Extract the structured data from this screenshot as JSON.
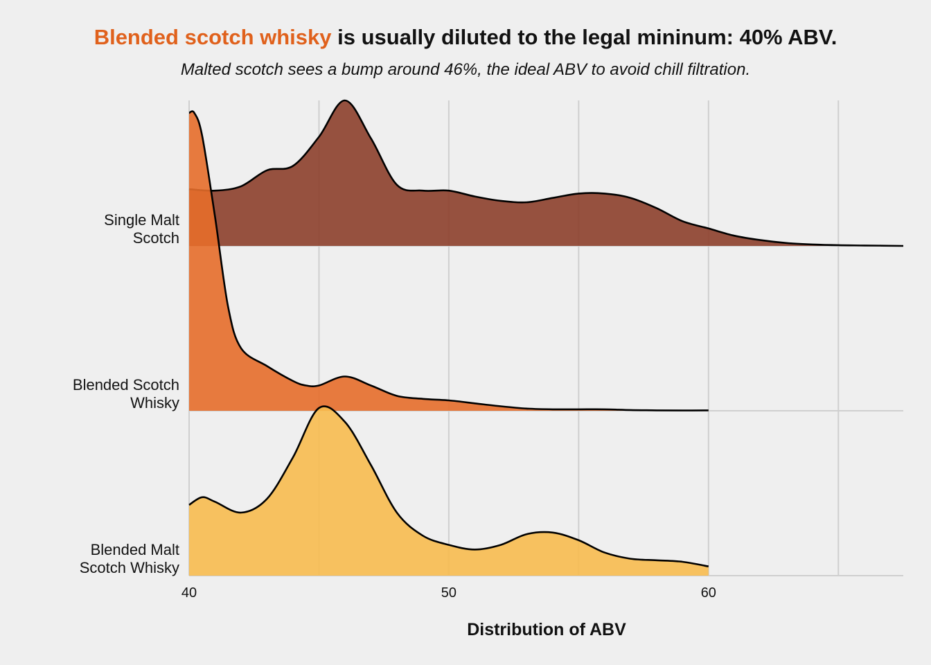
{
  "chart_data": {
    "type": "ridgeline",
    "title": {
      "highlight": "Blended scotch whisky",
      "rest": " is usually diluted to the legal mininum: 40% ABV.",
      "highlight_color": "#e0611c"
    },
    "subtitle": "Malted scotch sees a bump around 46%, the ideal ABV to avoid chill filtration.",
    "xlabel": "Distribution of ABV",
    "xlim": [
      40,
      67.5
    ],
    "x_ticks": [
      40,
      50,
      60
    ],
    "x_tick_labels": [
      "40",
      "50",
      "60"
    ],
    "grid": true,
    "series": [
      {
        "name": "Single Malt Scotch",
        "label_lines": [
          "Single Malt",
          "Scotch"
        ],
        "color": "#8c3f2b",
        "x": [
          40,
          41,
          42,
          43,
          44,
          45,
          46,
          47,
          48,
          49,
          50,
          51,
          52,
          53,
          54,
          55,
          56,
          57,
          58,
          59,
          60,
          61,
          62,
          63,
          64,
          65,
          66,
          67.5
        ],
        "density": [
          0.39,
          0.38,
          0.41,
          0.52,
          0.55,
          0.75,
          1.0,
          0.74,
          0.42,
          0.38,
          0.38,
          0.34,
          0.31,
          0.3,
          0.33,
          0.36,
          0.36,
          0.33,
          0.26,
          0.17,
          0.12,
          0.07,
          0.04,
          0.02,
          0.01,
          0.005,
          0.003,
          0.0
        ]
      },
      {
        "name": "Blended Scotch Whisky",
        "label_lines": [
          "Blended Scotch",
          "Whisky"
        ],
        "color": "#e56d2a",
        "x": [
          40,
          40.2,
          40.5,
          41,
          41.5,
          42,
          43,
          44,
          44.5,
          45,
          46,
          47,
          48,
          49,
          50,
          51,
          52,
          53,
          54,
          55,
          56,
          57,
          58,
          59,
          60
        ],
        "density": [
          2.0,
          2.0,
          1.85,
          1.3,
          0.7,
          0.42,
          0.3,
          0.2,
          0.17,
          0.17,
          0.23,
          0.17,
          0.1,
          0.08,
          0.07,
          0.05,
          0.03,
          0.015,
          0.01,
          0.01,
          0.01,
          0.005,
          0.003,
          0.002,
          0.003
        ]
      },
      {
        "name": "Blended Malt Scotch Whisky",
        "label_lines": [
          "Blended Malt",
          "Scotch Whisky"
        ],
        "color": "#f7bb4f",
        "x": [
          40,
          40.5,
          41,
          42,
          43,
          44,
          45,
          46,
          47,
          48,
          49,
          50,
          51,
          52,
          53,
          54,
          55,
          56,
          57,
          58,
          59,
          60
        ],
        "density": [
          0.46,
          0.51,
          0.48,
          0.41,
          0.5,
          0.77,
          1.09,
          1.0,
          0.72,
          0.41,
          0.26,
          0.2,
          0.17,
          0.2,
          0.27,
          0.28,
          0.23,
          0.15,
          0.11,
          0.1,
          0.09,
          0.06
        ]
      }
    ]
  }
}
